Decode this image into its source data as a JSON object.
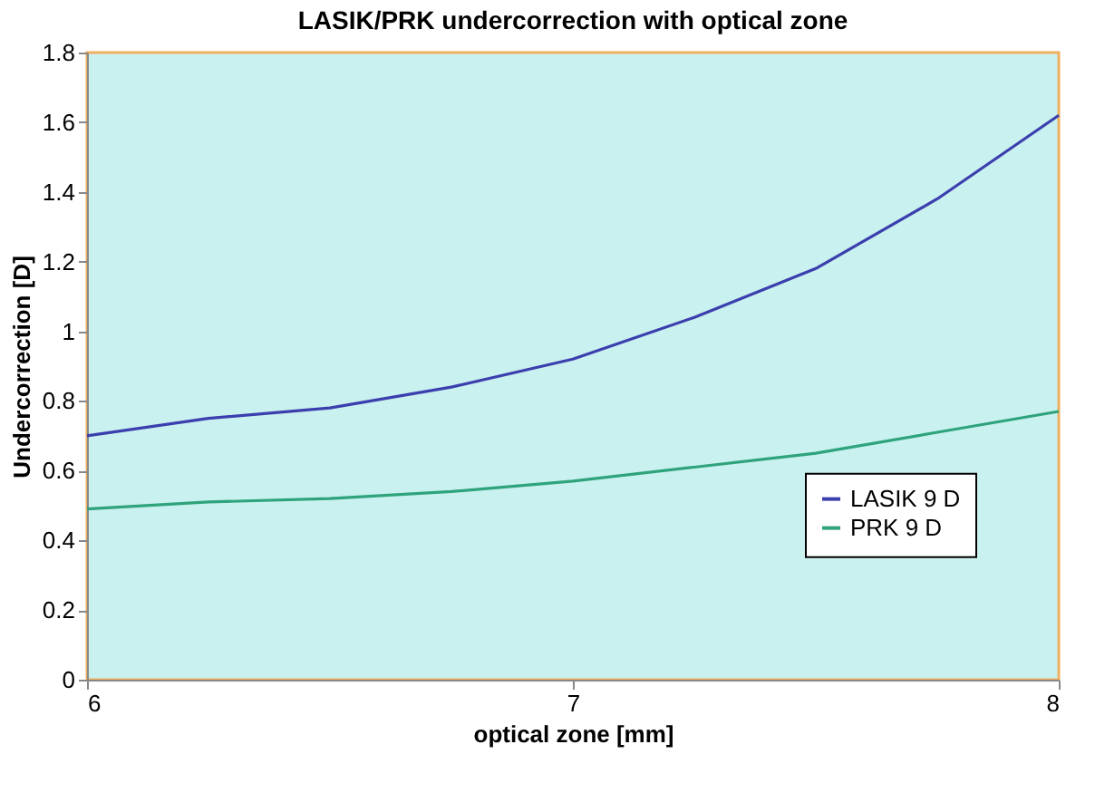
{
  "chart_data": {
    "type": "line",
    "title": "LASIK/PRK undercorrection with optical zone",
    "xlabel": "optical zone [mm]",
    "ylabel": "Undercorrection [D]",
    "x": [
      6,
      6.25,
      6.5,
      6.75,
      7,
      7.25,
      7.5,
      7.75,
      8
    ],
    "series": [
      {
        "name": "LASIK 9 D",
        "color": "#3b3fae",
        "values": [
          0.7,
          0.75,
          0.78,
          0.84,
          0.92,
          1.04,
          1.18,
          1.38,
          1.62
        ]
      },
      {
        "name": "PRK 9 D",
        "color": "#2ea37c",
        "values": [
          0.49,
          0.51,
          0.52,
          0.54,
          0.57,
          0.61,
          0.65,
          0.71,
          0.77
        ]
      }
    ],
    "xlim": [
      6,
      8
    ],
    "xticks": [
      6,
      7,
      8
    ],
    "ylim": [
      0,
      1.8
    ],
    "yticks": [
      0,
      0.2,
      0.4,
      0.6,
      0.8,
      1,
      1.2,
      1.4,
      1.6,
      1.8
    ],
    "grid": false,
    "legend": "right",
    "marker": "none",
    "line_style": "solid"
  }
}
